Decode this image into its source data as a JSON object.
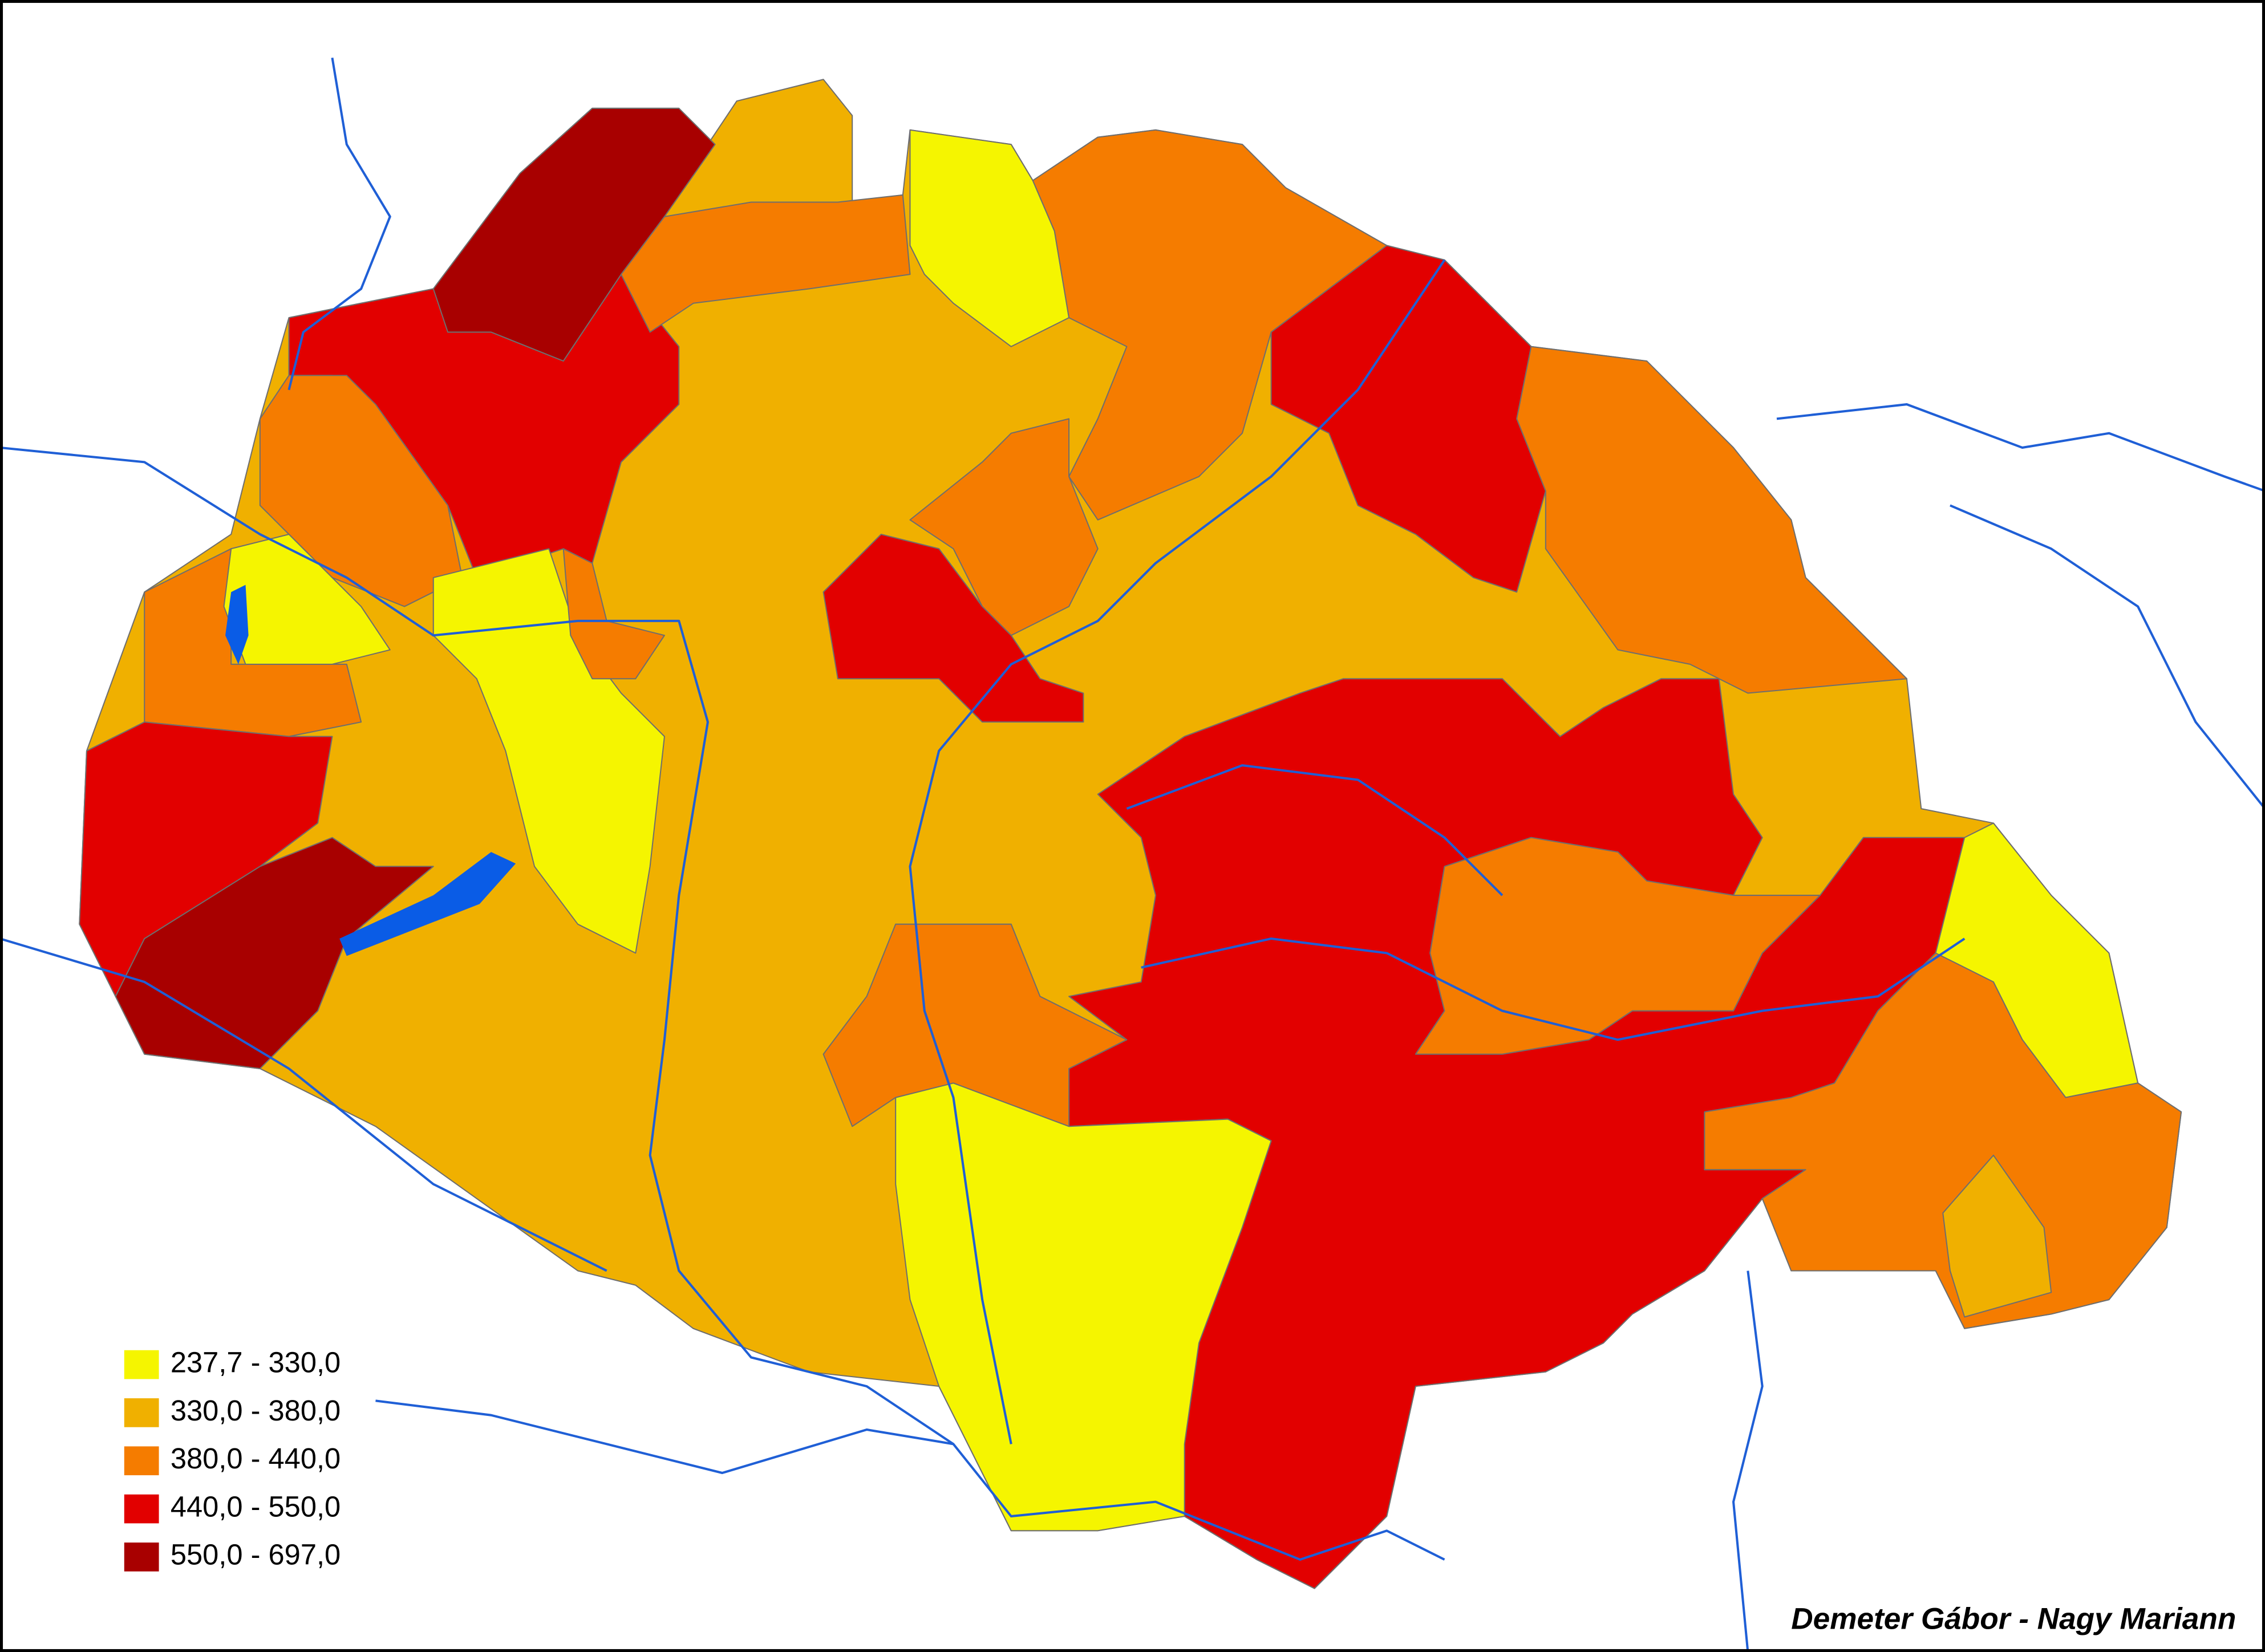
{
  "legend": {
    "items": [
      {
        "label": "237,7  - 330,0",
        "color": "#f5f500"
      },
      {
        "label": "330,0  - 380,0",
        "color": "#f0b000"
      },
      {
        "label": "380,0  - 440,0",
        "color": "#f57c00"
      },
      {
        "label": "440,0  - 550,0",
        "color": "#e20000"
      },
      {
        "label": "550,0  - 697,0",
        "color": "#a80000"
      }
    ]
  },
  "credit": "Demeter Gábor - Nagy Mariann"
}
